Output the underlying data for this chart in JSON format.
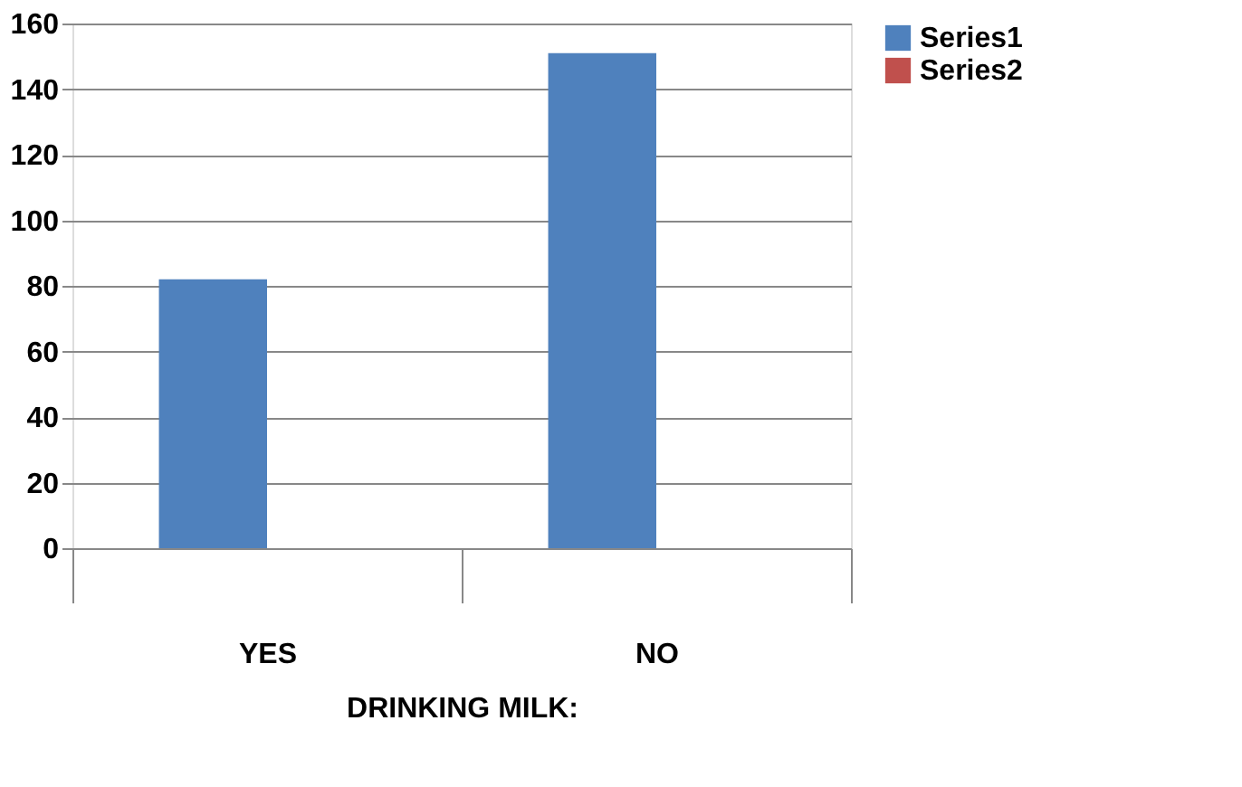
{
  "chart_data": {
    "type": "bar",
    "xlabel": "DRINKING MILK:",
    "categories": [
      "YES",
      "NO"
    ],
    "series": [
      {
        "name": "Series1",
        "color": "#4f81bd",
        "values": [
          82,
          151
        ]
      },
      {
        "name": "Series2",
        "color": "#c0504d",
        "values": [
          null,
          null
        ]
      }
    ],
    "ylim": [
      0,
      160
    ],
    "yticks": [
      0,
      20,
      40,
      60,
      80,
      100,
      120,
      140,
      160
    ],
    "grid": "y",
    "legend": "right"
  }
}
